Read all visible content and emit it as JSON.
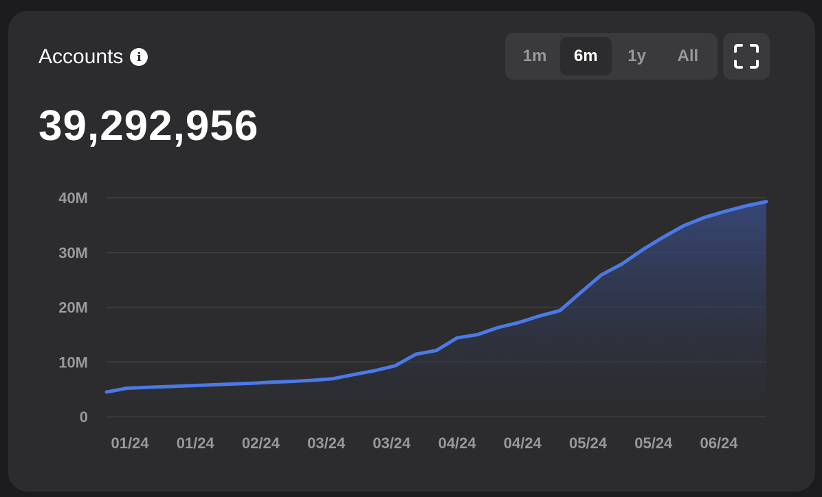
{
  "header": {
    "title": "Accounts",
    "info_icon": "info-icon",
    "value": "39,292,956"
  },
  "range_tabs": [
    {
      "label": "1m",
      "active": false
    },
    {
      "label": "6m",
      "active": true
    },
    {
      "label": "1y",
      "active": false
    },
    {
      "label": "All",
      "active": false
    }
  ],
  "fullscreen_icon": "fullscreen-icon",
  "colors": {
    "line": "#4a7ae6",
    "background": "#2c2c2e",
    "grid": "#3f3f42"
  },
  "chart_data": {
    "type": "area",
    "title": "",
    "xlabel": "",
    "ylabel": "",
    "ylim": [
      0,
      40000000
    ],
    "yticks": [
      0,
      10000000,
      20000000,
      30000000,
      40000000
    ],
    "ytick_labels": [
      "0",
      "10M",
      "20M",
      "30M",
      "40M"
    ],
    "xtick_labels": [
      "01/24",
      "01/24",
      "02/24",
      "03/24",
      "03/24",
      "04/24",
      "04/24",
      "05/24",
      "05/24",
      "06/24"
    ],
    "grid": true,
    "values_millions": [
      4.5,
      5.2,
      5.35,
      5.5,
      5.65,
      5.8,
      5.95,
      6.1,
      6.3,
      6.45,
      6.65,
      6.95,
      7.7,
      8.4,
      9.3,
      11.4,
      12.1,
      14.4,
      15.0,
      16.3,
      17.2,
      18.4,
      19.4,
      22.7,
      25.9,
      27.9,
      30.5,
      32.8,
      34.9,
      36.4,
      37.5,
      38.5,
      39.29
    ]
  }
}
